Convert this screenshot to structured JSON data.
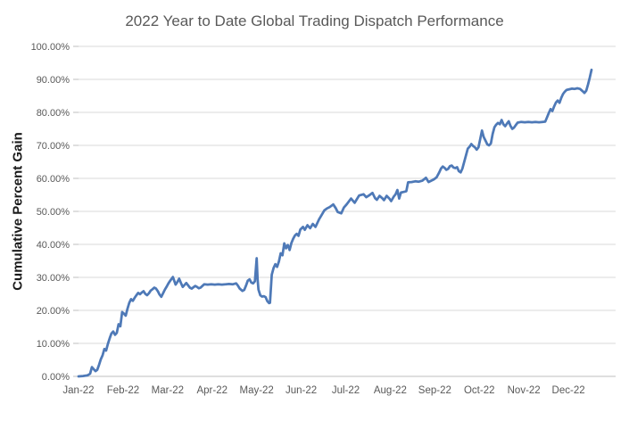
{
  "chart": {
    "title": "2022 Year to Date Global Trading Dispatch Performance",
    "y_axis_title": "Cumulative Percent Gain",
    "y_ticks": [
      "0.00%",
      "10.00%",
      "20.00%",
      "30.00%",
      "40.00%",
      "50.00%",
      "60.00%",
      "70.00%",
      "80.00%",
      "90.00%",
      "100.00%"
    ],
    "x_ticks": [
      "Jan-22",
      "Feb-22",
      "Mar-22",
      "Apr-22",
      "May-22",
      "Jun-22",
      "Jul-22",
      "Aug-22",
      "Sep-22",
      "Oct-22",
      "Nov-22",
      "Dec-22"
    ],
    "colors": {
      "line": "#4E79B7",
      "grid": "#D9D9D9",
      "axis": "#BFBFBF",
      "tick_text": "#595959",
      "title_text": "#595959",
      "y_title_text": "#1a1a1a"
    }
  },
  "chart_data": {
    "type": "line",
    "title": "2022 Year to Date Global Trading Dispatch Performance",
    "xlabel": "",
    "ylabel": "Cumulative Percent Gain",
    "x_unit": "decimal months since Jan 1 2022 (0 = Jan-22 tick, 11 = Dec-22 tick)",
    "xlim": [
      0,
      12.06
    ],
    "ylim": [
      0,
      100
    ],
    "y_tick_step": 10,
    "y_tick_format": "0.00%",
    "grid": "horizontal-only",
    "legend": "none",
    "series": [
      {
        "name": "Cumulative Percent Gain",
        "color": "#4E79B7",
        "points": [
          [
            0.0,
            0.0
          ],
          [
            0.1,
            0.1
          ],
          [
            0.2,
            0.3
          ],
          [
            0.26,
            0.8
          ],
          [
            0.3,
            2.8
          ],
          [
            0.34,
            2.2
          ],
          [
            0.38,
            1.6
          ],
          [
            0.42,
            2.0
          ],
          [
            0.46,
            3.5
          ],
          [
            0.5,
            5.2
          ],
          [
            0.54,
            6.4
          ],
          [
            0.58,
            8.3
          ],
          [
            0.62,
            7.8
          ],
          [
            0.66,
            9.8
          ],
          [
            0.7,
            11.5
          ],
          [
            0.74,
            13.0
          ],
          [
            0.78,
            13.6
          ],
          [
            0.82,
            12.6
          ],
          [
            0.86,
            13.2
          ],
          [
            0.9,
            15.8
          ],
          [
            0.94,
            15.2
          ],
          [
            0.98,
            19.5
          ],
          [
            1.02,
            19.0
          ],
          [
            1.06,
            18.4
          ],
          [
            1.1,
            20.5
          ],
          [
            1.14,
            22.3
          ],
          [
            1.18,
            23.4
          ],
          [
            1.22,
            22.9
          ],
          [
            1.26,
            23.8
          ],
          [
            1.3,
            24.6
          ],
          [
            1.34,
            25.3
          ],
          [
            1.38,
            24.9
          ],
          [
            1.42,
            25.4
          ],
          [
            1.46,
            25.8
          ],
          [
            1.5,
            25.0
          ],
          [
            1.54,
            24.6
          ],
          [
            1.58,
            25.2
          ],
          [
            1.62,
            26.0
          ],
          [
            1.66,
            26.4
          ],
          [
            1.7,
            26.9
          ],
          [
            1.74,
            26.6
          ],
          [
            1.78,
            25.8
          ],
          [
            1.82,
            24.8
          ],
          [
            1.86,
            24.1
          ],
          [
            1.9,
            25.2
          ],
          [
            1.94,
            26.3
          ],
          [
            1.98,
            27.2
          ],
          [
            2.02,
            28.2
          ],
          [
            2.06,
            29.0
          ],
          [
            2.12,
            30.1
          ],
          [
            2.18,
            27.8
          ],
          [
            2.22,
            28.6
          ],
          [
            2.26,
            29.6
          ],
          [
            2.3,
            28.3
          ],
          [
            2.34,
            27.1
          ],
          [
            2.38,
            27.7
          ],
          [
            2.42,
            28.3
          ],
          [
            2.46,
            27.6
          ],
          [
            2.5,
            26.9
          ],
          [
            2.54,
            26.6
          ],
          [
            2.58,
            27.0
          ],
          [
            2.62,
            27.4
          ],
          [
            2.66,
            27.1
          ],
          [
            2.7,
            26.7
          ],
          [
            2.74,
            26.9
          ],
          [
            2.78,
            27.4
          ],
          [
            2.82,
            27.9
          ],
          [
            2.9,
            27.8
          ],
          [
            2.98,
            27.9
          ],
          [
            3.06,
            27.8
          ],
          [
            3.14,
            27.9
          ],
          [
            3.22,
            27.8
          ],
          [
            3.3,
            27.9
          ],
          [
            3.38,
            28.0
          ],
          [
            3.46,
            27.9
          ],
          [
            3.54,
            28.2
          ],
          [
            3.58,
            27.5
          ],
          [
            3.62,
            26.6
          ],
          [
            3.68,
            25.9
          ],
          [
            3.72,
            26.2
          ],
          [
            3.76,
            27.5
          ],
          [
            3.8,
            29.0
          ],
          [
            3.84,
            29.4
          ],
          [
            3.88,
            28.4
          ],
          [
            3.92,
            28.2
          ],
          [
            3.96,
            28.8
          ],
          [
            4.0,
            35.8
          ],
          [
            4.02,
            29.5
          ],
          [
            4.04,
            26.3
          ],
          [
            4.08,
            24.6
          ],
          [
            4.12,
            24.2
          ],
          [
            4.16,
            24.3
          ],
          [
            4.2,
            24.0
          ],
          [
            4.24,
            22.8
          ],
          [
            4.28,
            22.2
          ],
          [
            4.3,
            22.3
          ],
          [
            4.34,
            30.8
          ],
          [
            4.38,
            32.8
          ],
          [
            4.42,
            34.0
          ],
          [
            4.46,
            33.2
          ],
          [
            4.5,
            34.8
          ],
          [
            4.54,
            37.3
          ],
          [
            4.58,
            36.7
          ],
          [
            4.62,
            40.3
          ],
          [
            4.66,
            38.8
          ],
          [
            4.7,
            39.8
          ],
          [
            4.74,
            38.3
          ],
          [
            4.78,
            40.4
          ],
          [
            4.82,
            41.7
          ],
          [
            4.86,
            42.7
          ],
          [
            4.9,
            43.2
          ],
          [
            4.94,
            42.6
          ],
          [
            4.98,
            44.5
          ],
          [
            5.04,
            45.3
          ],
          [
            5.08,
            44.4
          ],
          [
            5.14,
            45.8
          ],
          [
            5.2,
            44.9
          ],
          [
            5.26,
            46.2
          ],
          [
            5.32,
            45.3
          ],
          [
            5.4,
            47.6
          ],
          [
            5.46,
            48.9
          ],
          [
            5.52,
            50.3
          ],
          [
            5.58,
            50.9
          ],
          [
            5.64,
            51.3
          ],
          [
            5.72,
            52.1
          ],
          [
            5.78,
            50.9
          ],
          [
            5.82,
            49.8
          ],
          [
            5.9,
            49.4
          ],
          [
            5.96,
            51.2
          ],
          [
            6.02,
            52.1
          ],
          [
            6.12,
            53.9
          ],
          [
            6.2,
            52.6
          ],
          [
            6.3,
            54.8
          ],
          [
            6.4,
            55.2
          ],
          [
            6.46,
            54.3
          ],
          [
            6.52,
            54.8
          ],
          [
            6.6,
            55.6
          ],
          [
            6.66,
            54.0
          ],
          [
            6.7,
            53.5
          ],
          [
            6.76,
            54.7
          ],
          [
            6.82,
            54.0
          ],
          [
            6.86,
            53.4
          ],
          [
            6.92,
            54.7
          ],
          [
            6.98,
            53.9
          ],
          [
            7.02,
            53.1
          ],
          [
            7.08,
            54.5
          ],
          [
            7.12,
            55.2
          ],
          [
            7.16,
            56.5
          ],
          [
            7.2,
            53.9
          ],
          [
            7.24,
            55.7
          ],
          [
            7.3,
            55.9
          ],
          [
            7.36,
            56.1
          ],
          [
            7.4,
            58.8
          ],
          [
            7.48,
            58.9
          ],
          [
            7.56,
            59.1
          ],
          [
            7.64,
            59.0
          ],
          [
            7.72,
            59.3
          ],
          [
            7.8,
            60.2
          ],
          [
            7.86,
            58.9
          ],
          [
            7.92,
            59.3
          ],
          [
            7.98,
            59.7
          ],
          [
            8.04,
            60.3
          ],
          [
            8.1,
            61.8
          ],
          [
            8.14,
            63.0
          ],
          [
            8.18,
            63.6
          ],
          [
            8.22,
            63.2
          ],
          [
            8.26,
            62.6
          ],
          [
            8.3,
            62.9
          ],
          [
            8.34,
            63.7
          ],
          [
            8.38,
            63.9
          ],
          [
            8.42,
            63.3
          ],
          [
            8.46,
            63.1
          ],
          [
            8.5,
            63.4
          ],
          [
            8.54,
            62.2
          ],
          [
            8.58,
            61.8
          ],
          [
            8.62,
            63.0
          ],
          [
            8.66,
            65.0
          ],
          [
            8.7,
            67.0
          ],
          [
            8.74,
            69.0
          ],
          [
            8.78,
            69.6
          ],
          [
            8.82,
            70.4
          ],
          [
            8.86,
            69.8
          ],
          [
            8.9,
            69.4
          ],
          [
            8.94,
            68.7
          ],
          [
            8.98,
            69.4
          ],
          [
            9.02,
            72.0
          ],
          [
            9.06,
            74.5
          ],
          [
            9.1,
            72.5
          ],
          [
            9.14,
            71.4
          ],
          [
            9.18,
            70.3
          ],
          [
            9.22,
            70.0
          ],
          [
            9.26,
            70.6
          ],
          [
            9.3,
            73.5
          ],
          [
            9.34,
            75.5
          ],
          [
            9.38,
            76.3
          ],
          [
            9.42,
            76.8
          ],
          [
            9.46,
            76.4
          ],
          [
            9.5,
            77.7
          ],
          [
            9.54,
            76.4
          ],
          [
            9.58,
            75.8
          ],
          [
            9.62,
            76.6
          ],
          [
            9.66,
            77.3
          ],
          [
            9.7,
            75.9
          ],
          [
            9.74,
            75.0
          ],
          [
            9.78,
            75.4
          ],
          [
            9.82,
            76.2
          ],
          [
            9.86,
            76.9
          ],
          [
            9.94,
            77.1
          ],
          [
            10.02,
            77.0
          ],
          [
            10.1,
            77.1
          ],
          [
            10.18,
            77.0
          ],
          [
            10.26,
            77.1
          ],
          [
            10.34,
            77.0
          ],
          [
            10.42,
            77.1
          ],
          [
            10.48,
            77.2
          ],
          [
            10.52,
            78.5
          ],
          [
            10.56,
            79.8
          ],
          [
            10.6,
            81.0
          ],
          [
            10.64,
            80.4
          ],
          [
            10.68,
            81.8
          ],
          [
            10.72,
            83.0
          ],
          [
            10.76,
            83.6
          ],
          [
            10.8,
            82.9
          ],
          [
            10.84,
            84.4
          ],
          [
            10.88,
            85.6
          ],
          [
            10.92,
            86.3
          ],
          [
            10.96,
            86.8
          ],
          [
            11.02,
            87.0
          ],
          [
            11.08,
            87.2
          ],
          [
            11.14,
            87.1
          ],
          [
            11.2,
            87.3
          ],
          [
            11.26,
            87.1
          ],
          [
            11.32,
            86.4
          ],
          [
            11.36,
            85.9
          ],
          [
            11.4,
            86.6
          ],
          [
            11.44,
            88.5
          ],
          [
            11.48,
            90.5
          ],
          [
            11.52,
            92.9
          ]
        ]
      }
    ]
  }
}
